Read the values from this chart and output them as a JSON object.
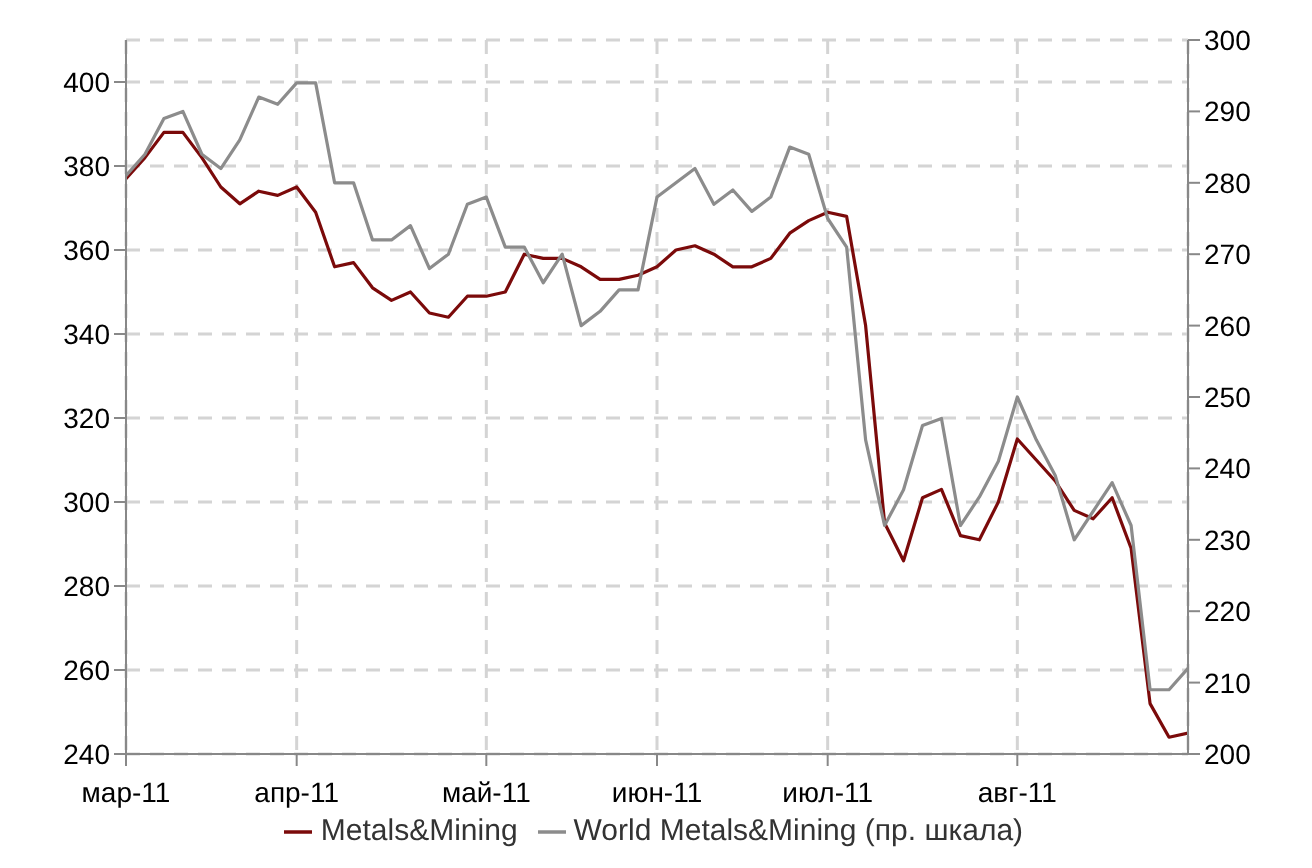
{
  "chart_data": {
    "type": "line",
    "categories": [
      "мар-11",
      null,
      null,
      null,
      null,
      null,
      null,
      null,
      null,
      "апр-11",
      null,
      null,
      null,
      null,
      null,
      null,
      null,
      null,
      null,
      "май-11",
      null,
      null,
      null,
      null,
      null,
      null,
      null,
      null,
      "июн-11",
      null,
      null,
      null,
      null,
      null,
      null,
      null,
      null,
      "июл-11",
      null,
      null,
      null,
      null,
      null,
      null,
      null,
      null,
      null,
      "авг-11",
      null,
      null,
      null,
      null,
      null,
      null,
      null,
      null,
      null
    ],
    "series": [
      {
        "name": "Metals&Mining",
        "color": "#7b0a0a",
        "values": [
          377,
          382,
          388,
          388,
          382,
          375,
          371,
          374,
          373,
          375,
          369,
          356,
          357,
          351,
          348,
          350,
          345,
          344,
          349,
          349,
          350,
          359,
          358,
          358,
          356,
          353,
          353,
          354,
          356,
          360,
          361,
          359,
          356,
          356,
          358,
          364,
          367,
          369,
          368,
          342,
          295,
          286,
          301,
          303,
          292,
          291,
          300,
          315,
          310,
          305,
          298,
          296,
          301,
          289,
          252,
          244,
          245
        ]
      },
      {
        "name": "World Metals&Mining (пр. шкала)",
        "color": "#8c8c8c",
        "axis": "y2",
        "values": [
          281,
          284,
          289,
          290,
          284,
          282,
          286,
          292,
          291,
          294,
          294,
          280,
          280,
          272,
          272,
          274,
          268,
          270,
          277,
          278,
          271,
          271,
          266,
          270,
          260,
          262,
          265,
          265,
          278,
          280,
          282,
          277,
          279,
          276,
          278,
          285,
          284,
          275,
          271,
          244,
          232,
          237,
          246,
          247,
          232,
          236,
          241,
          250,
          244,
          239,
          230,
          234,
          238,
          232,
          209,
          209,
          212
        ]
      }
    ],
    "ylim": [
      240,
      410
    ],
    "yticks": [
      240,
      260,
      280,
      300,
      320,
      340,
      360,
      380,
      400
    ],
    "y2lim": [
      200,
      300
    ],
    "y2ticks": [
      200,
      210,
      220,
      230,
      240,
      250,
      260,
      270,
      280,
      290,
      300
    ],
    "grid": true,
    "legend": "bottom"
  }
}
